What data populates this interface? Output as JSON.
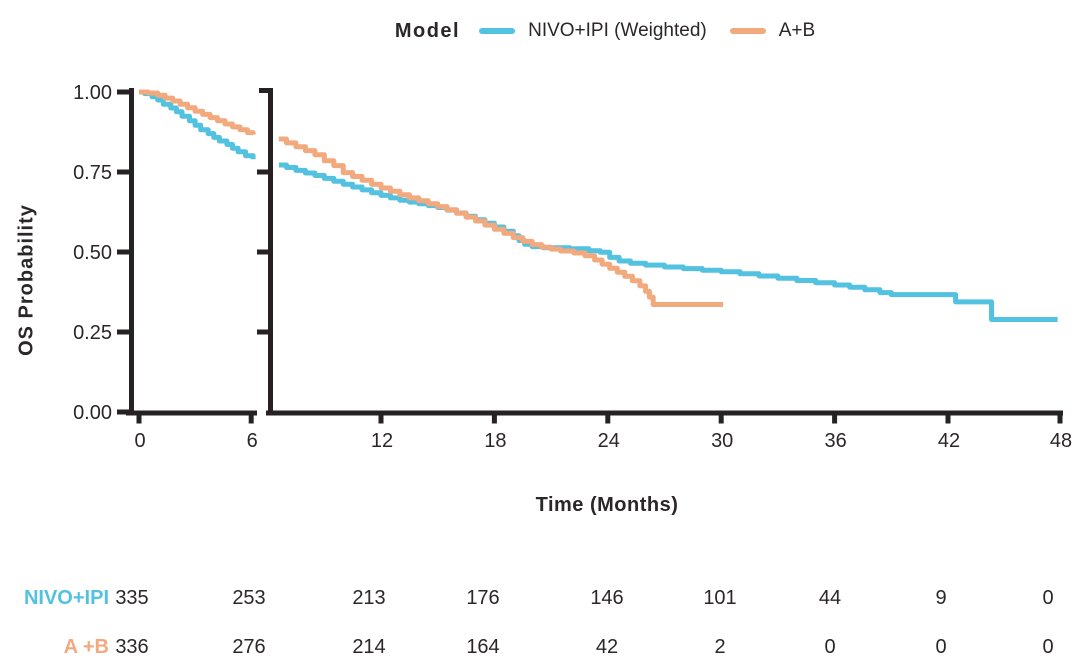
{
  "legend": {
    "title": "Model",
    "series": [
      {
        "label": "NIVO+IPI (Weighted)",
        "color": "#53C1E0"
      },
      {
        "label": "A+B",
        "color": "#F3A97E"
      }
    ]
  },
  "chart_data": {
    "type": "line",
    "subtype": "kaplan-meier-step-curves",
    "title": "",
    "x_label": "Time (Months)",
    "y_label": "OS Probability",
    "x_range": [
      0,
      48
    ],
    "y_range": [
      0.0,
      1.0
    ],
    "x_ticks": [
      0,
      6,
      12,
      18,
      24,
      30,
      36,
      42,
      48
    ],
    "y_ticks": [
      {
        "value": 1.0,
        "label": "1.00"
      },
      {
        "value": 0.75,
        "label": "0.75"
      },
      {
        "value": 0.5,
        "label": "0.50"
      },
      {
        "value": 0.25,
        "label": "0.25"
      },
      {
        "value": 0.0,
        "label": "0.00"
      }
    ],
    "grid": false,
    "legend_position": "top-center",
    "axis_break": {
      "between_months": [
        6,
        7
      ]
    },
    "series": [
      {
        "name": "NIVO+IPI (Weighted)",
        "color": "#53C1E0",
        "points": [
          [
            0,
            1.0
          ],
          [
            0.3,
            0.995
          ],
          [
            0.7,
            0.985
          ],
          [
            1.0,
            0.975
          ],
          [
            1.3,
            0.962
          ],
          [
            1.7,
            0.95
          ],
          [
            2.0,
            0.938
          ],
          [
            2.3,
            0.924
          ],
          [
            2.7,
            0.91
          ],
          [
            3.0,
            0.896
          ],
          [
            3.3,
            0.882
          ],
          [
            3.7,
            0.87
          ],
          [
            4.0,
            0.858
          ],
          [
            4.3,
            0.847
          ],
          [
            4.7,
            0.836
          ],
          [
            5.0,
            0.824
          ],
          [
            5.3,
            0.813
          ],
          [
            5.7,
            0.801
          ],
          [
            6.1,
            0.79
          ],
          [
            6.6,
            0.772
          ],
          [
            7.0,
            0.764
          ],
          [
            7.5,
            0.755
          ],
          [
            8.0,
            0.747
          ],
          [
            8.5,
            0.739
          ],
          [
            9.0,
            0.73
          ],
          [
            9.5,
            0.721
          ],
          [
            10.0,
            0.712
          ],
          [
            10.5,
            0.703
          ],
          [
            11.0,
            0.694
          ],
          [
            11.5,
            0.685
          ],
          [
            12.0,
            0.677
          ],
          [
            12.5,
            0.669
          ],
          [
            13.0,
            0.662
          ],
          [
            13.5,
            0.656
          ],
          [
            14.0,
            0.651
          ],
          [
            14.5,
            0.645
          ],
          [
            15.0,
            0.639
          ],
          [
            15.5,
            0.631
          ],
          [
            16.0,
            0.622
          ],
          [
            16.5,
            0.612
          ],
          [
            17.0,
            0.601
          ],
          [
            17.5,
            0.59
          ],
          [
            18.0,
            0.578
          ],
          [
            18.5,
            0.565
          ],
          [
            19.0,
            0.551
          ],
          [
            19.3,
            0.536
          ],
          [
            19.6,
            0.524
          ],
          [
            20.0,
            0.517
          ],
          [
            20.6,
            0.513
          ],
          [
            22.0,
            0.51
          ],
          [
            23.0,
            0.504
          ],
          [
            23.6,
            0.499
          ],
          [
            24.1,
            0.483
          ],
          [
            24.6,
            0.472
          ],
          [
            25.2,
            0.465
          ],
          [
            26.0,
            0.459
          ],
          [
            27.0,
            0.453
          ],
          [
            28.0,
            0.448
          ],
          [
            29.0,
            0.443
          ],
          [
            30.0,
            0.438
          ],
          [
            31.0,
            0.432
          ],
          [
            32.0,
            0.425
          ],
          [
            33.0,
            0.418
          ],
          [
            34.0,
            0.411
          ],
          [
            35.0,
            0.404
          ],
          [
            36.0,
            0.397
          ],
          [
            36.8,
            0.39
          ],
          [
            37.6,
            0.382
          ],
          [
            38.4,
            0.373
          ],
          [
            39.0,
            0.367
          ],
          [
            42.4,
            0.344
          ],
          [
            44.3,
            0.289
          ],
          [
            47.8,
            0.289
          ]
        ]
      },
      {
        "name": "A+B",
        "color": "#F3A97E",
        "points": [
          [
            0,
            1.0
          ],
          [
            0.5,
            0.997
          ],
          [
            1.0,
            0.99
          ],
          [
            1.4,
            0.981
          ],
          [
            1.8,
            0.972
          ],
          [
            2.2,
            0.962
          ],
          [
            2.6,
            0.951
          ],
          [
            3.0,
            0.94
          ],
          [
            3.4,
            0.93
          ],
          [
            3.8,
            0.92
          ],
          [
            4.2,
            0.91
          ],
          [
            4.6,
            0.9
          ],
          [
            5.0,
            0.891
          ],
          [
            5.4,
            0.882
          ],
          [
            5.8,
            0.873
          ],
          [
            6.1,
            0.867
          ],
          [
            6.6,
            0.853
          ],
          [
            7.0,
            0.841
          ],
          [
            7.5,
            0.829
          ],
          [
            8.0,
            0.817
          ],
          [
            8.5,
            0.804
          ],
          [
            9.0,
            0.785
          ],
          [
            9.5,
            0.77
          ],
          [
            10.0,
            0.748
          ],
          [
            10.5,
            0.736
          ],
          [
            11.0,
            0.724
          ],
          [
            11.5,
            0.712
          ],
          [
            12.0,
            0.7
          ],
          [
            12.5,
            0.69
          ],
          [
            13.0,
            0.679
          ],
          [
            13.5,
            0.669
          ],
          [
            14.0,
            0.66
          ],
          [
            14.5,
            0.651
          ],
          [
            15.0,
            0.642
          ],
          [
            15.5,
            0.632
          ],
          [
            16.0,
            0.621
          ],
          [
            16.5,
            0.609
          ],
          [
            17.0,
            0.597
          ],
          [
            17.5,
            0.584
          ],
          [
            18.0,
            0.571
          ],
          [
            18.5,
            0.558
          ],
          [
            19.0,
            0.545
          ],
          [
            19.5,
            0.533
          ],
          [
            20.0,
            0.523
          ],
          [
            20.5,
            0.515
          ],
          [
            21.0,
            0.509
          ],
          [
            21.5,
            0.503
          ],
          [
            22.2,
            0.497
          ],
          [
            22.8,
            0.488
          ],
          [
            23.3,
            0.475
          ],
          [
            23.7,
            0.462
          ],
          [
            24.1,
            0.449
          ],
          [
            24.5,
            0.437
          ],
          [
            24.9,
            0.424
          ],
          [
            25.3,
            0.41
          ],
          [
            25.7,
            0.394
          ],
          [
            26.0,
            0.377
          ],
          [
            26.2,
            0.359
          ],
          [
            26.4,
            0.336
          ],
          [
            30.1,
            0.336
          ]
        ]
      }
    ]
  },
  "risk_table": {
    "time_points": [
      0,
      6,
      12,
      18,
      24,
      30,
      36,
      42,
      48
    ],
    "rows": [
      {
        "label": "NIVO+IPI",
        "color": "#53C1E0",
        "counts": [
          "335",
          "253",
          "213",
          "176",
          "146",
          "101",
          "44",
          "9",
          "0"
        ]
      },
      {
        "label": "A +B",
        "color": "#F3A97E",
        "counts": [
          "336",
          "276",
          "214",
          "164",
          "42",
          "2",
          "0",
          "0",
          "0"
        ]
      }
    ]
  }
}
